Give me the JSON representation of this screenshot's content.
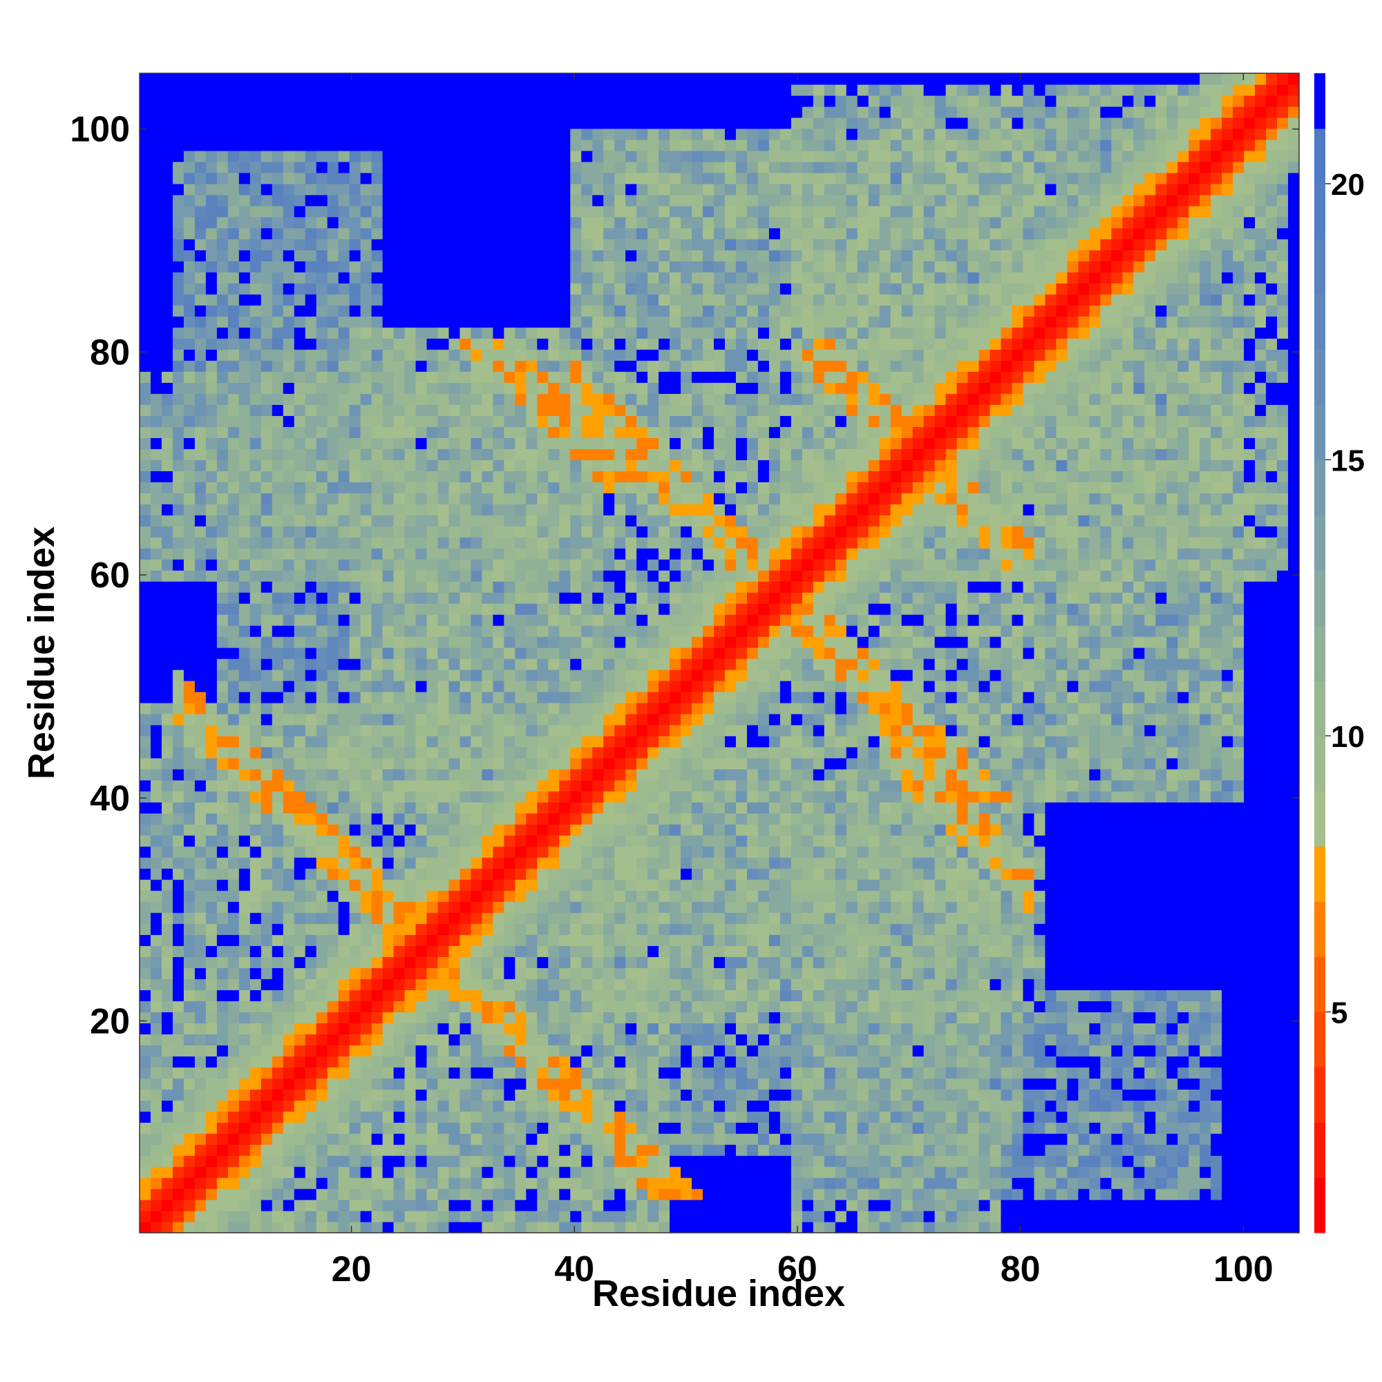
{
  "chart_data": {
    "type": "heatmap",
    "title": "",
    "xlabel": "Residue index",
    "ylabel": "Residue index",
    "n_residues": 105,
    "xlim": [
      1,
      105
    ],
    "ylim": [
      1,
      105
    ],
    "x_ticks": [
      20,
      40,
      60,
      80,
      100
    ],
    "y_ticks": [
      20,
      40,
      60,
      80,
      100
    ],
    "x_tick_labels": [
      "20",
      "40",
      "60",
      "80",
      "100"
    ],
    "y_tick_labels": [
      "20",
      "40",
      "60",
      "80",
      "100"
    ],
    "grid": false,
    "legend": "none",
    "colorbar": {
      "position": "right",
      "range": [
        1,
        22
      ],
      "ticks": [
        5,
        10,
        15,
        20
      ],
      "tick_labels": [
        "5",
        "10",
        "15",
        "20"
      ],
      "levels": [
        {
          "from": 1,
          "to": 2,
          "color": "#ff0000"
        },
        {
          "from": 2,
          "to": 3,
          "color": "#ff1800"
        },
        {
          "from": 3,
          "to": 4,
          "color": "#ff3000"
        },
        {
          "from": 4,
          "to": 5,
          "color": "#ff4800"
        },
        {
          "from": 5,
          "to": 6,
          "color": "#ff6000"
        },
        {
          "from": 6,
          "to": 7,
          "color": "#ff8000"
        },
        {
          "from": 7,
          "to": 8,
          "color": "#ffa000"
        },
        {
          "from": 8,
          "to": 9,
          "color": "#a4bf8d"
        },
        {
          "from": 9,
          "to": 10,
          "color": "#9ebb8f"
        },
        {
          "from": 10,
          "to": 11,
          "color": "#98b792"
        },
        {
          "from": 11,
          "to": 12,
          "color": "#90b098"
        },
        {
          "from": 12,
          "to": 13,
          "color": "#88a99f"
        },
        {
          "from": 13,
          "to": 14,
          "color": "#7fa2a6"
        },
        {
          "from": 14,
          "to": 15,
          "color": "#769aae"
        },
        {
          "from": 15,
          "to": 16,
          "color": "#6e94b4"
        },
        {
          "from": 16,
          "to": 17,
          "color": "#668db9"
        },
        {
          "from": 17,
          "to": 18,
          "color": "#5f87bc"
        },
        {
          "from": 18,
          "to": 19,
          "color": "#5982bf"
        },
        {
          "from": 19,
          "to": 20,
          "color": "#547ec2"
        },
        {
          "from": 20,
          "to": 21,
          "color": "#4f7ac5"
        },
        {
          "from": 21,
          "to": 22,
          "color": "#0000ff"
        }
      ]
    },
    "structure": {
      "background_value": 22,
      "diagonal": {
        "value": 1,
        "half_width": 2.5
      },
      "features": [
        {
          "kind": "antidiagonal",
          "sum": 53,
          "x_range": [
            4,
            31
          ],
          "value": 6,
          "width": 2.0
        },
        {
          "kind": "antidiagonal",
          "sum": 117,
          "x_range": [
            40,
            75
          ],
          "value": 6,
          "width": 2.0
        },
        {
          "kind": "antidiagonal",
          "sum": 142,
          "x_range": [
            62,
            80
          ],
          "value": 6,
          "width": 2.0
        },
        {
          "kind": "antidiagonal",
          "sum": 113,
          "x_range": [
            68,
            81
          ],
          "value": 6,
          "width": 2.0
        },
        {
          "kind": "block",
          "x": [
            1,
            48
          ],
          "y": [
            1,
            46
          ],
          "value": 12
        },
        {
          "kind": "block",
          "x": [
            20,
            100
          ],
          "y": [
            40,
            82
          ],
          "value": 12
        },
        {
          "kind": "block",
          "x": [
            60,
            104
          ],
          "y": [
            60,
            104
          ],
          "value": 12
        },
        {
          "kind": "block",
          "x": [
            1,
            38
          ],
          "y": [
            60,
            78
          ],
          "value": 13
        },
        {
          "kind": "block",
          "x": [
            38,
            80
          ],
          "y": [
            8,
            42
          ],
          "value": 14
        },
        {
          "kind": "block",
          "x": [
            62,
            98
          ],
          "y": [
            4,
            22
          ],
          "value": 15
        },
        {
          "kind": "block",
          "x": [
            40,
            100
          ],
          "y": [
            82,
            100
          ],
          "value": 15
        }
      ]
    }
  }
}
